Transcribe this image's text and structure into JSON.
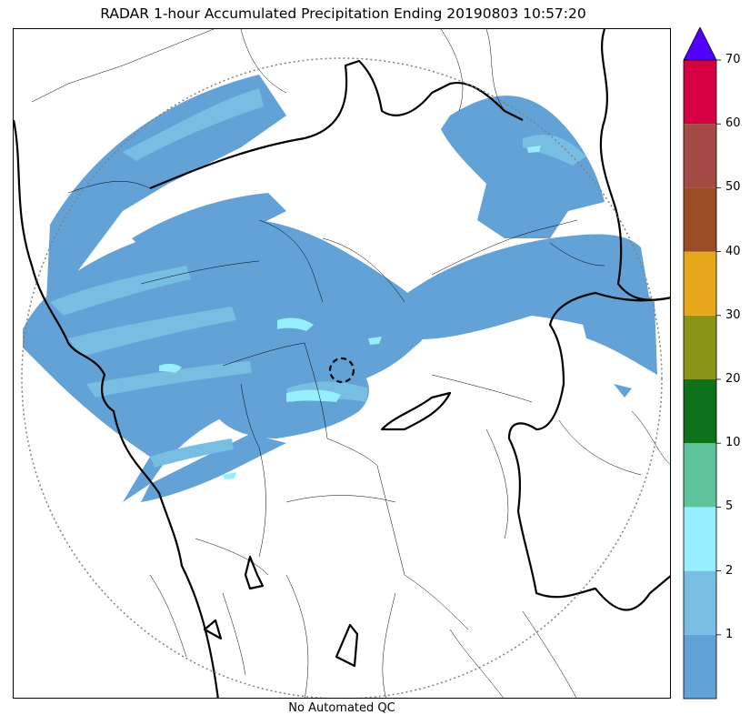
{
  "title": "RADAR 1-hour Accumulated Precipitation Ending 20190803 10:57:20",
  "footer": "No Automated QC",
  "colorbar": {
    "extend": "max",
    "arrow_color": "#5200ff",
    "bins": [
      {
        "color": "#62a2d6"
      },
      {
        "color": "#78bde2"
      },
      {
        "color": "#96efff"
      },
      {
        "color": "#5dc49b"
      },
      {
        "color": "#0d7219"
      },
      {
        "color": "#8a9416"
      },
      {
        "color": "#e8a81b"
      },
      {
        "color": "#9b4d26"
      },
      {
        "color": "#a44a44"
      },
      {
        "color": "#d50044"
      }
    ],
    "tick_labels": [
      "1",
      "2",
      "5",
      "10",
      "20",
      "30",
      "40",
      "50",
      "60",
      "70"
    ]
  },
  "map": {
    "range_ring_color": "#808080",
    "radar_site_marker": "dashed-circle",
    "precip_colors": {
      "light": "#62a2d6",
      "medium": "#78bde2",
      "heavy": "#96efff",
      "peak": "#5dc49b"
    }
  }
}
